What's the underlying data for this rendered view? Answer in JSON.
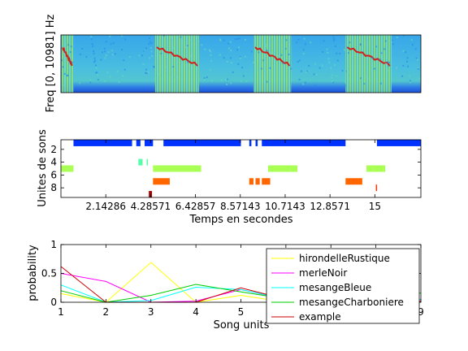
{
  "chart_data": [
    {
      "type": "heatmap",
      "title": "",
      "xlabel": "",
      "ylabel": "Freq [0, 10981] Hz",
      "x_tick_labels": [],
      "y_tick_labels": [],
      "colormap": "jet",
      "xlim": [
        0,
        17.2
      ],
      "syllable_bands_s": [
        [
          0.0,
          0.6
        ],
        [
          4.5,
          6.6
        ],
        [
          9.2,
          11.0
        ],
        [
          13.6,
          15.8
        ]
      ],
      "colors": {
        "background": "#2f9fe6",
        "noise": "#5cc9c9",
        "band": "#7fd97f",
        "syllable_line": "#d21f1f",
        "low_band": "#1b4fd8"
      }
    },
    {
      "type": "scatter",
      "title": "",
      "xlabel": "Temps en secondes",
      "ylabel": "Unites de sons",
      "xlim": [
        0,
        17.2
      ],
      "ylim": [
        9.5,
        0.5
      ],
      "x_ticks": [
        2.14286,
        4.28571,
        6.42857,
        8.57143,
        10.7143,
        12.8571,
        15
      ],
      "x_tick_labels": [
        "2.14286",
        "4.28571",
        "6.42857",
        "8.57143",
        "10.7143",
        "12.8571",
        "15"
      ],
      "y_ticks": [
        2,
        4,
        6,
        8
      ],
      "y_tick_labels": [
        "2",
        "4",
        "6",
        "8"
      ],
      "series": [
        {
          "unit": 1,
          "color": "#0033ff",
          "segments": [
            [
              0.6,
              3.4
            ],
            [
              3.6,
              3.8
            ],
            [
              4.0,
              4.4
            ],
            [
              4.9,
              8.6
            ],
            [
              9.0,
              9.1
            ],
            [
              9.3,
              9.4
            ],
            [
              9.6,
              13.6
            ],
            [
              15.1,
              17.2
            ]
          ]
        },
        {
          "unit": 4,
          "color": "#55ffaa",
          "segments": [
            [
              3.7,
              3.9
            ],
            [
              4.1,
              4.15
            ]
          ]
        },
        {
          "unit": 5,
          "color": "#aaff55",
          "segments": [
            [
              0.0,
              0.6
            ],
            [
              4.4,
              6.7
            ],
            [
              9.9,
              11.3
            ],
            [
              14.6,
              15.5
            ]
          ]
        },
        {
          "unit": 7,
          "color": "#ff6600",
          "segments": [
            [
              4.4,
              5.2
            ],
            [
              9.0,
              9.2
            ],
            [
              9.3,
              9.5
            ],
            [
              9.6,
              10.0
            ],
            [
              13.6,
              14.4
            ]
          ]
        },
        {
          "unit": 8,
          "color": "#ff3300",
          "segments": [
            [
              15.05,
              15.1
            ]
          ]
        },
        {
          "unit": 9,
          "color": "#aa0000",
          "segments": [
            [
              4.2,
              4.35
            ]
          ]
        }
      ]
    },
    {
      "type": "line",
      "title": "",
      "xlabel": "Song units",
      "ylabel": "probability",
      "x": [
        1,
        2,
        3,
        4,
        5,
        6,
        7,
        8,
        9
      ],
      "xlim": [
        1,
        9
      ],
      "ylim": [
        0,
        1
      ],
      "x_tick_labels": [
        "1",
        "2",
        "3",
        "4",
        "5",
        "6",
        "7",
        "8",
        "9"
      ],
      "y_ticks": [
        0,
        0.5,
        1
      ],
      "y_tick_labels": [
        "0",
        "0.5",
        "1"
      ],
      "legend_position": "top-right",
      "series": [
        {
          "name": "hirondelleRustique",
          "color": "#ffff00",
          "values": [
            0.15,
            0.0,
            0.69,
            0.0,
            0.12,
            0.0,
            0.05,
            0.0,
            0.05
          ]
        },
        {
          "name": "merleNoir",
          "color": "#ff00ff",
          "values": [
            0.5,
            0.36,
            0.0,
            0.02,
            0.22,
            0.05,
            0.05,
            0.02,
            0.05
          ]
        },
        {
          "name": "mesangeBleue",
          "color": "#00ffff",
          "values": [
            0.3,
            0.0,
            0.03,
            0.26,
            0.22,
            0.05,
            0.03,
            0.05,
            0.05
          ]
        },
        {
          "name": "mesangeCharboniere",
          "color": "#00cc00",
          "values": [
            0.2,
            0.0,
            0.12,
            0.31,
            0.18,
            0.06,
            0.05,
            0.08,
            0.16
          ]
        },
        {
          "name": "example",
          "color": "#cc0000",
          "values": [
            0.62,
            0.0,
            0.0,
            0.0,
            0.25,
            0.05,
            0.02,
            0.02,
            0.02
          ]
        }
      ]
    }
  ]
}
